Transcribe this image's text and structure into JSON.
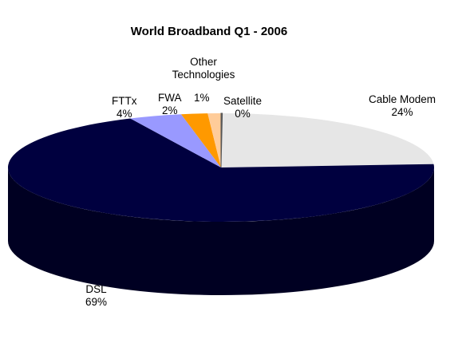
{
  "chart_data": {
    "type": "pie",
    "style": "3d",
    "title": "World Broadband Q1 - 2006",
    "legend": "none",
    "slices": [
      {
        "label": "Cable Modem",
        "value": 24,
        "value_label": "24%",
        "color": "#e6e6e6",
        "side_color": "#b3b3b3"
      },
      {
        "label": "DSL",
        "value": 69,
        "value_label": "69%",
        "color": "#00003f",
        "side_color": "#000022"
      },
      {
        "label": "FTTx",
        "value": 4,
        "value_label": "4%",
        "color": "#9999ff",
        "side_color": "#6b6bd1"
      },
      {
        "label": "FWA",
        "value": 2,
        "value_label": "2%",
        "color": "#ff9900",
        "side_color": "#c87400"
      },
      {
        "label": "Other Technologies",
        "value": 1,
        "value_label": "1%",
        "color": "#ffcc99",
        "side_color": "#d9a774"
      },
      {
        "label": "Satellite",
        "value": 0,
        "value_label": "0%",
        "color": "#666666",
        "side_color": "#444444"
      }
    ]
  }
}
